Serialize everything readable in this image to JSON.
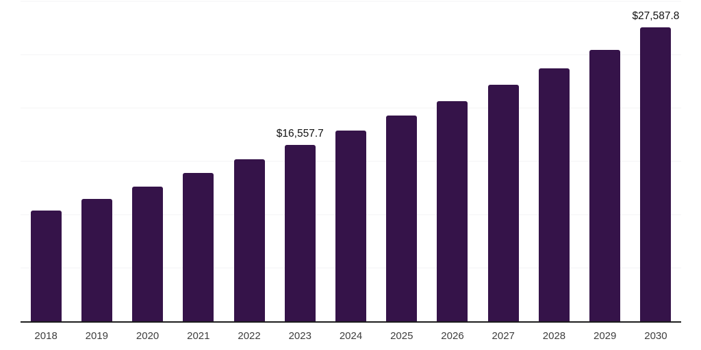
{
  "chart_data": {
    "type": "bar",
    "categories": [
      "2018",
      "2019",
      "2020",
      "2021",
      "2022",
      "2023",
      "2024",
      "2025",
      "2026",
      "2027",
      "2028",
      "2029",
      "2030"
    ],
    "values": [
      10400,
      11450,
      12650,
      13900,
      15200,
      16557.7,
      17900,
      19300,
      20650,
      22150,
      23750,
      25450,
      27587.8
    ],
    "annotations": [
      {
        "index": 5,
        "text": "$16,557.7"
      },
      {
        "index": 12,
        "text": "$27,587.8"
      }
    ],
    "title": "",
    "xlabel": "",
    "ylabel": "",
    "ylim": [
      0,
      30000
    ],
    "gridlines": [
      5000,
      10000,
      15000,
      20000,
      25000,
      30000
    ],
    "grid_on": true,
    "legend": "none",
    "bar_color": "#351349",
    "grid_color": "#f3f3f5",
    "axis_line_color": "#1c1c1c",
    "tick_label_color": "#3d3d3d",
    "annotation_color": "#111111"
  }
}
